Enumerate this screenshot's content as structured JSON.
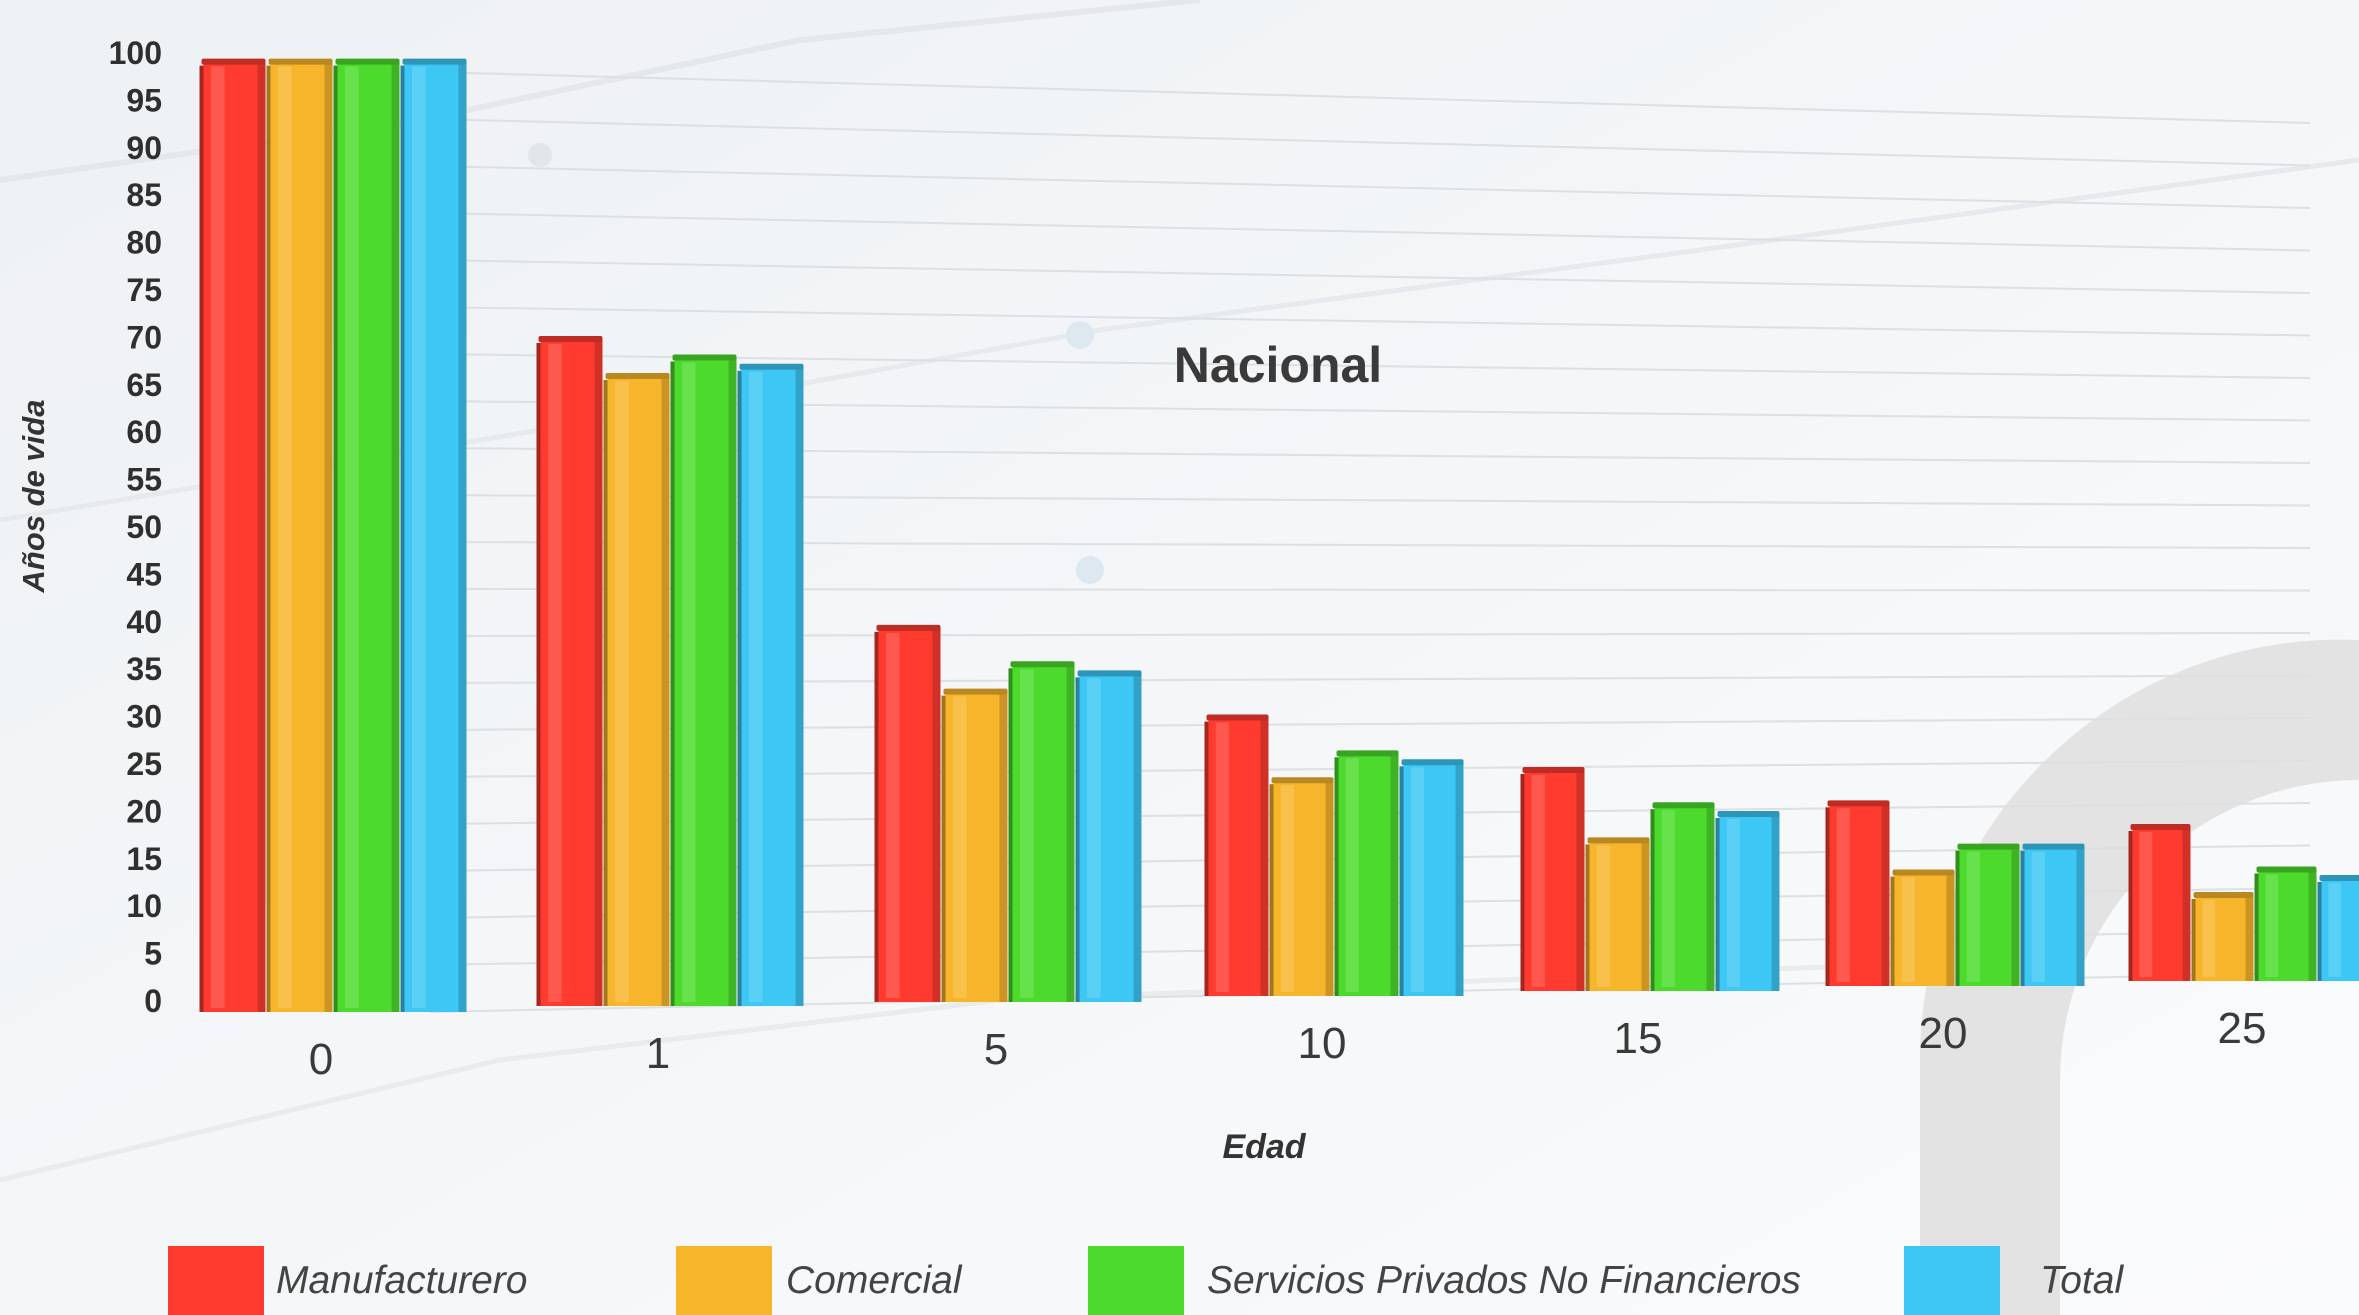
{
  "chart_data": {
    "type": "bar",
    "title": "Nacional",
    "xlabel": "Edad",
    "ylabel": "Años de vida",
    "categories": [
      "0",
      "1",
      "5",
      "10",
      "15",
      "20",
      "25"
    ],
    "ylim": [
      0,
      100
    ],
    "yticks": [
      0,
      5,
      10,
      15,
      20,
      25,
      30,
      35,
      40,
      45,
      50,
      55,
      60,
      65,
      70,
      75,
      80,
      85,
      90,
      95,
      100
    ],
    "grid": true,
    "legend_position": "bottom",
    "series": [
      {
        "name": "Manufacturero",
        "color": "#ff3b2f",
        "values": [
          101,
          72,
          41,
          31,
          25,
          21,
          18
        ]
      },
      {
        "name": "Comercial",
        "color": "#f7b52b",
        "values": [
          101,
          68,
          34,
          24,
          17,
          13,
          10
        ]
      },
      {
        "name": "Servicios Privados No Financieros",
        "color": "#4cdb2c",
        "values": [
          101,
          70,
          37,
          27,
          21,
          16,
          13
        ]
      },
      {
        "name": "Total",
        "color": "#3cc7f5",
        "values": [
          101,
          69,
          36,
          26,
          20,
          16,
          12
        ]
      }
    ]
  }
}
